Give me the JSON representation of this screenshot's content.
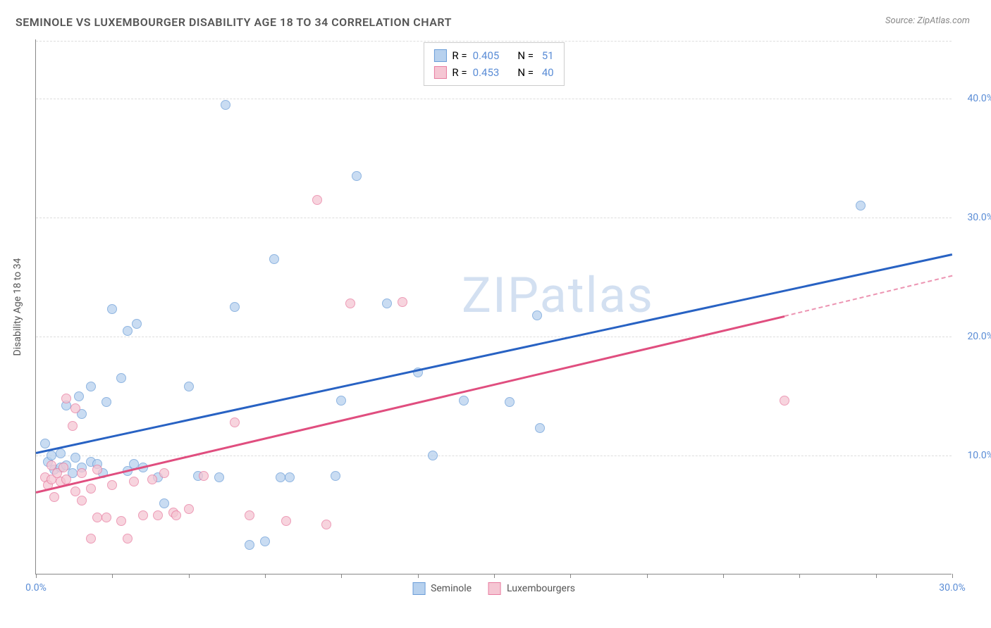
{
  "title": "SEMINOLE VS LUXEMBOURGER DISABILITY AGE 18 TO 34 CORRELATION CHART",
  "source": "Source: ZipAtlas.com",
  "watermark": "ZIPatlas",
  "y_axis_label": "Disability Age 18 to 34",
  "chart": {
    "type": "scatter",
    "xlim": [
      0,
      30
    ],
    "ylim": [
      0,
      45
    ],
    "x_ticks": [
      0,
      2.5,
      5,
      7.5,
      10,
      12.5,
      15,
      17.5,
      20,
      22.5,
      25,
      27.5,
      30
    ],
    "x_tick_labels": {
      "0": "0.0%",
      "30": "30.0%"
    },
    "y_gridlines": [
      10,
      20,
      30,
      40
    ],
    "y_tick_labels": {
      "10": "10.0%",
      "20": "20.0%",
      "30": "30.0%",
      "40": "40.0%"
    },
    "background_color": "#ffffff",
    "grid_color": "#dddddd",
    "axis_color": "#888888",
    "tick_label_color": "#5b8dd6",
    "marker_size": 14,
    "marker_opacity": 0.75
  },
  "series": [
    {
      "name": "Seminole",
      "fill": "#b7d1ee",
      "stroke": "#6a9dd8",
      "trend_color": "#2862c3",
      "R_label": "R =",
      "R": "0.405",
      "N_label": "N =",
      "N": "51",
      "trendline": {
        "x1": 0,
        "y1": 10.3,
        "x2": 30,
        "y2": 27.0
      },
      "points": [
        [
          0.3,
          11.0
        ],
        [
          0.4,
          9.5
        ],
        [
          0.5,
          10.0
        ],
        [
          0.6,
          8.8
        ],
        [
          0.8,
          10.2
        ],
        [
          0.8,
          9.0
        ],
        [
          1.0,
          14.2
        ],
        [
          1.0,
          9.2
        ],
        [
          1.2,
          8.5
        ],
        [
          1.3,
          9.8
        ],
        [
          1.4,
          15.0
        ],
        [
          1.5,
          9.0
        ],
        [
          1.5,
          13.5
        ],
        [
          1.8,
          9.5
        ],
        [
          1.8,
          15.8
        ],
        [
          2.0,
          9.3
        ],
        [
          2.2,
          8.5
        ],
        [
          2.3,
          14.5
        ],
        [
          2.5,
          22.3
        ],
        [
          2.8,
          16.5
        ],
        [
          3.0,
          20.5
        ],
        [
          3.0,
          8.7
        ],
        [
          3.2,
          9.3
        ],
        [
          3.3,
          21.1
        ],
        [
          3.5,
          9.0
        ],
        [
          4.0,
          8.2
        ],
        [
          4.2,
          6.0
        ],
        [
          5.0,
          15.8
        ],
        [
          5.3,
          8.3
        ],
        [
          6.0,
          8.2
        ],
        [
          6.2,
          39.5
        ],
        [
          6.5,
          22.5
        ],
        [
          7.0,
          2.5
        ],
        [
          7.5,
          2.8
        ],
        [
          7.8,
          26.5
        ],
        [
          8.0,
          8.2
        ],
        [
          8.3,
          8.2
        ],
        [
          9.8,
          8.3
        ],
        [
          10.0,
          14.6
        ],
        [
          10.5,
          33.5
        ],
        [
          11.5,
          22.8
        ],
        [
          12.5,
          17.0
        ],
        [
          13.0,
          10.0
        ],
        [
          14.0,
          14.6
        ],
        [
          15.5,
          14.5
        ],
        [
          16.4,
          21.8
        ],
        [
          16.5,
          12.3
        ],
        [
          27.0,
          31.0
        ]
      ]
    },
    {
      "name": "Luxemburgers",
      "fill": "#f5c6d3",
      "stroke": "#e87ca0",
      "trend_color": "#e04e7f",
      "R_label": "R =",
      "R": "0.453",
      "N_label": "N =",
      "N": "40",
      "trendline": {
        "x1": 0,
        "y1": 7.0,
        "x2": 24.5,
        "y2": 21.8
      },
      "trendline_dash": {
        "x1": 24.5,
        "y1": 21.8,
        "x2": 30,
        "y2": 25.2
      },
      "points": [
        [
          0.3,
          8.2
        ],
        [
          0.4,
          7.5
        ],
        [
          0.5,
          8.0
        ],
        [
          0.5,
          9.2
        ],
        [
          0.6,
          6.5
        ],
        [
          0.7,
          8.5
        ],
        [
          0.8,
          7.8
        ],
        [
          0.9,
          9.0
        ],
        [
          1.0,
          14.8
        ],
        [
          1.0,
          8.0
        ],
        [
          1.2,
          12.5
        ],
        [
          1.3,
          7.0
        ],
        [
          1.3,
          14.0
        ],
        [
          1.5,
          6.2
        ],
        [
          1.5,
          8.5
        ],
        [
          1.8,
          3.0
        ],
        [
          1.8,
          7.2
        ],
        [
          2.0,
          4.8
        ],
        [
          2.0,
          8.8
        ],
        [
          2.3,
          4.8
        ],
        [
          2.5,
          7.5
        ],
        [
          2.8,
          4.5
        ],
        [
          3.0,
          3.0
        ],
        [
          3.2,
          7.8
        ],
        [
          3.5,
          5.0
        ],
        [
          3.8,
          8.0
        ],
        [
          4.0,
          5.0
        ],
        [
          4.2,
          8.5
        ],
        [
          4.5,
          5.2
        ],
        [
          4.6,
          5.0
        ],
        [
          5.0,
          5.5
        ],
        [
          5.5,
          8.3
        ],
        [
          6.5,
          12.8
        ],
        [
          7.0,
          5.0
        ],
        [
          8.2,
          4.5
        ],
        [
          9.2,
          31.5
        ],
        [
          9.5,
          4.2
        ],
        [
          10.3,
          22.8
        ],
        [
          12.0,
          22.9
        ],
        [
          24.5,
          14.6
        ]
      ]
    }
  ],
  "legend_bottom": [
    {
      "swatch_fill": "#b7d1ee",
      "swatch_stroke": "#6a9dd8",
      "label": "Seminole"
    },
    {
      "swatch_fill": "#f5c6d3",
      "swatch_stroke": "#e87ca0",
      "label": "Luxembourgers"
    }
  ]
}
